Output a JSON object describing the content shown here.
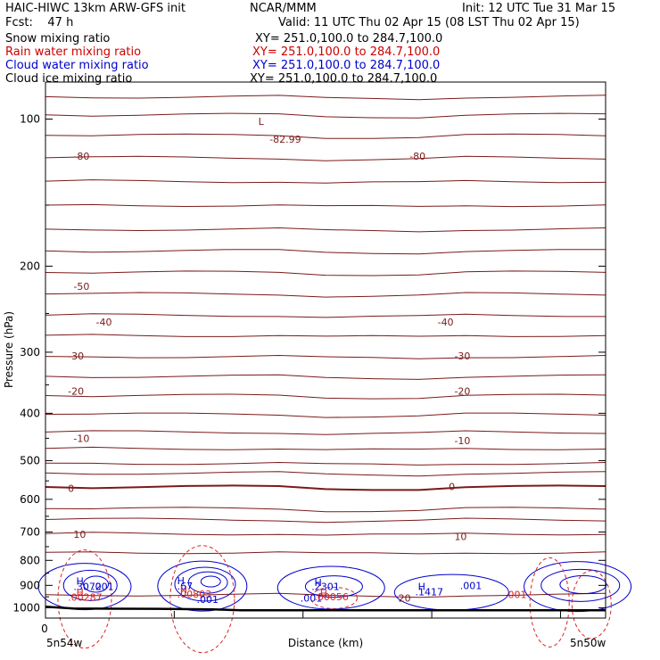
{
  "header": {
    "line1_left": "HAIC-HIWC 13km ARW-GFS init",
    "line1_mid": "NCAR/MMM",
    "line1_right": "Init: 12 UTC Tue 31 Mar 15",
    "line2_left": "Fcst:    47 h",
    "line2_right": "Valid: 11 UTC Thu 02 Apr 15 (08 LST Thu 02 Apr 15)",
    "fields": [
      {
        "name": "Snow mixing ratio",
        "xy": "XY= 251.0,100.0 to 284.7,100.0",
        "color": "#000000"
      },
      {
        "name": "Rain water mixing ratio",
        "xy": "XY= 251.0,100.0 to 284.7,100.0",
        "color": "#cc0000"
      },
      {
        "name": "Cloud water mixing ratio",
        "xy": "XY= 251.0,100.0 to 284.7,100.0",
        "color": "#0000cc"
      },
      {
        "name": "Cloud ice mixing ratio",
        "xy": "XY= 251.0,100.0 to 284.7,100.0",
        "color": "#000000"
      }
    ]
  },
  "chart_data": {
    "type": "line",
    "xlabel": "Distance (km)",
    "ylabel": "Pressure (hPa)",
    "x_tick_labels": [
      "0"
    ],
    "x_end_labels": [
      "5n54w",
      "5n50w"
    ],
    "y_ticks": [
      100,
      200,
      300,
      400,
      500,
      600,
      700,
      800,
      900,
      1000
    ],
    "ylim": [
      1050,
      80
    ],
    "y_scale": "log",
    "colors": {
      "temperature": "#7a1a1a",
      "cloud_water": "#0000cc",
      "rain_water": "#dd2222",
      "terrain": "#000000"
    },
    "temperature_labels": [
      {
        "text": "-80",
        "x": 0.05,
        "p": 119
      },
      {
        "text": "-80",
        "x": 0.65,
        "p": 119
      },
      {
        "text": "-82.99",
        "x": 0.4,
        "p": 110
      },
      {
        "text": "L",
        "x": 0.38,
        "p": 101
      },
      {
        "text": "-50",
        "x": 0.05,
        "p": 220
      },
      {
        "text": "-40",
        "x": 0.09,
        "p": 260
      },
      {
        "text": "-40",
        "x": 0.7,
        "p": 260
      },
      {
        "text": "-30",
        "x": 0.04,
        "p": 305
      },
      {
        "text": "-30",
        "x": 0.73,
        "p": 305
      },
      {
        "text": "-20",
        "x": 0.04,
        "p": 360
      },
      {
        "text": "-20",
        "x": 0.73,
        "p": 360
      },
      {
        "text": "-10",
        "x": 0.05,
        "p": 450
      },
      {
        "text": "-10",
        "x": 0.73,
        "p": 455
      },
      {
        "text": "0",
        "x": 0.04,
        "p": 570
      },
      {
        "text": "0",
        "x": 0.72,
        "p": 565
      },
      {
        "text": "10",
        "x": 0.05,
        "p": 707
      },
      {
        "text": "10",
        "x": 0.73,
        "p": 715
      },
      {
        "text": "20",
        "x": 0.63,
        "p": 955
      }
    ],
    "isotherm_pressures": [
      90,
      98,
      108,
      120,
      134,
      150,
      168,
      186,
      206,
      228,
      252,
      277,
      306,
      336,
      368,
      402,
      437,
      472,
      506,
      530,
      566,
      627,
      660,
      705,
      770,
      940
    ],
    "cloud_labels": [
      {
        "text": "H",
        "x": 0.055,
        "p": 882,
        "color": "#0000cc"
      },
      {
        "text": ".3072",
        "x": 0.05,
        "p": 905,
        "color": "#0000cc"
      },
      {
        "text": ".001",
        "x": 0.083,
        "p": 905,
        "color": "#0000cc"
      },
      {
        "text": "H",
        "x": 0.055,
        "p": 930,
        "color": "#dd2222"
      },
      {
        "text": ".00287",
        "x": 0.04,
        "p": 952,
        "color": "#dd2222"
      },
      {
        "text": "H",
        "x": 0.235,
        "p": 880,
        "color": "#0000cc"
      },
      {
        "text": ".67",
        "x": 0.235,
        "p": 902,
        "color": "#0000cc"
      },
      {
        "text": "H",
        "x": 0.24,
        "p": 918,
        "color": "#dd2222"
      },
      {
        "text": ".00803",
        "x": 0.235,
        "p": 938,
        "color": "#dd2222"
      },
      {
        "text": ".001",
        "x": 0.27,
        "p": 962,
        "color": "#0000cc"
      },
      {
        "text": "H",
        "x": 0.48,
        "p": 888,
        "color": "#0000cc"
      },
      {
        "text": ".2301",
        "x": 0.475,
        "p": 905,
        "color": "#0000cc"
      },
      {
        "text": "H",
        "x": 0.49,
        "p": 933,
        "color": "#dd2222"
      },
      {
        "text": ".001",
        "x": 0.455,
        "p": 955,
        "color": "#0000cc"
      },
      {
        "text": ".00056",
        "x": 0.48,
        "p": 950,
        "color": "#dd2222"
      },
      {
        "text": "H",
        "x": 0.665,
        "p": 905,
        "color": "#0000cc"
      },
      {
        "text": ".1417",
        "x": 0.66,
        "p": 928,
        "color": "#0000cc"
      },
      {
        "text": ".001",
        "x": 0.74,
        "p": 900,
        "color": "#0000cc"
      },
      {
        "text": ".001",
        "x": 0.82,
        "p": 940,
        "color": "#dd2222"
      }
    ]
  }
}
